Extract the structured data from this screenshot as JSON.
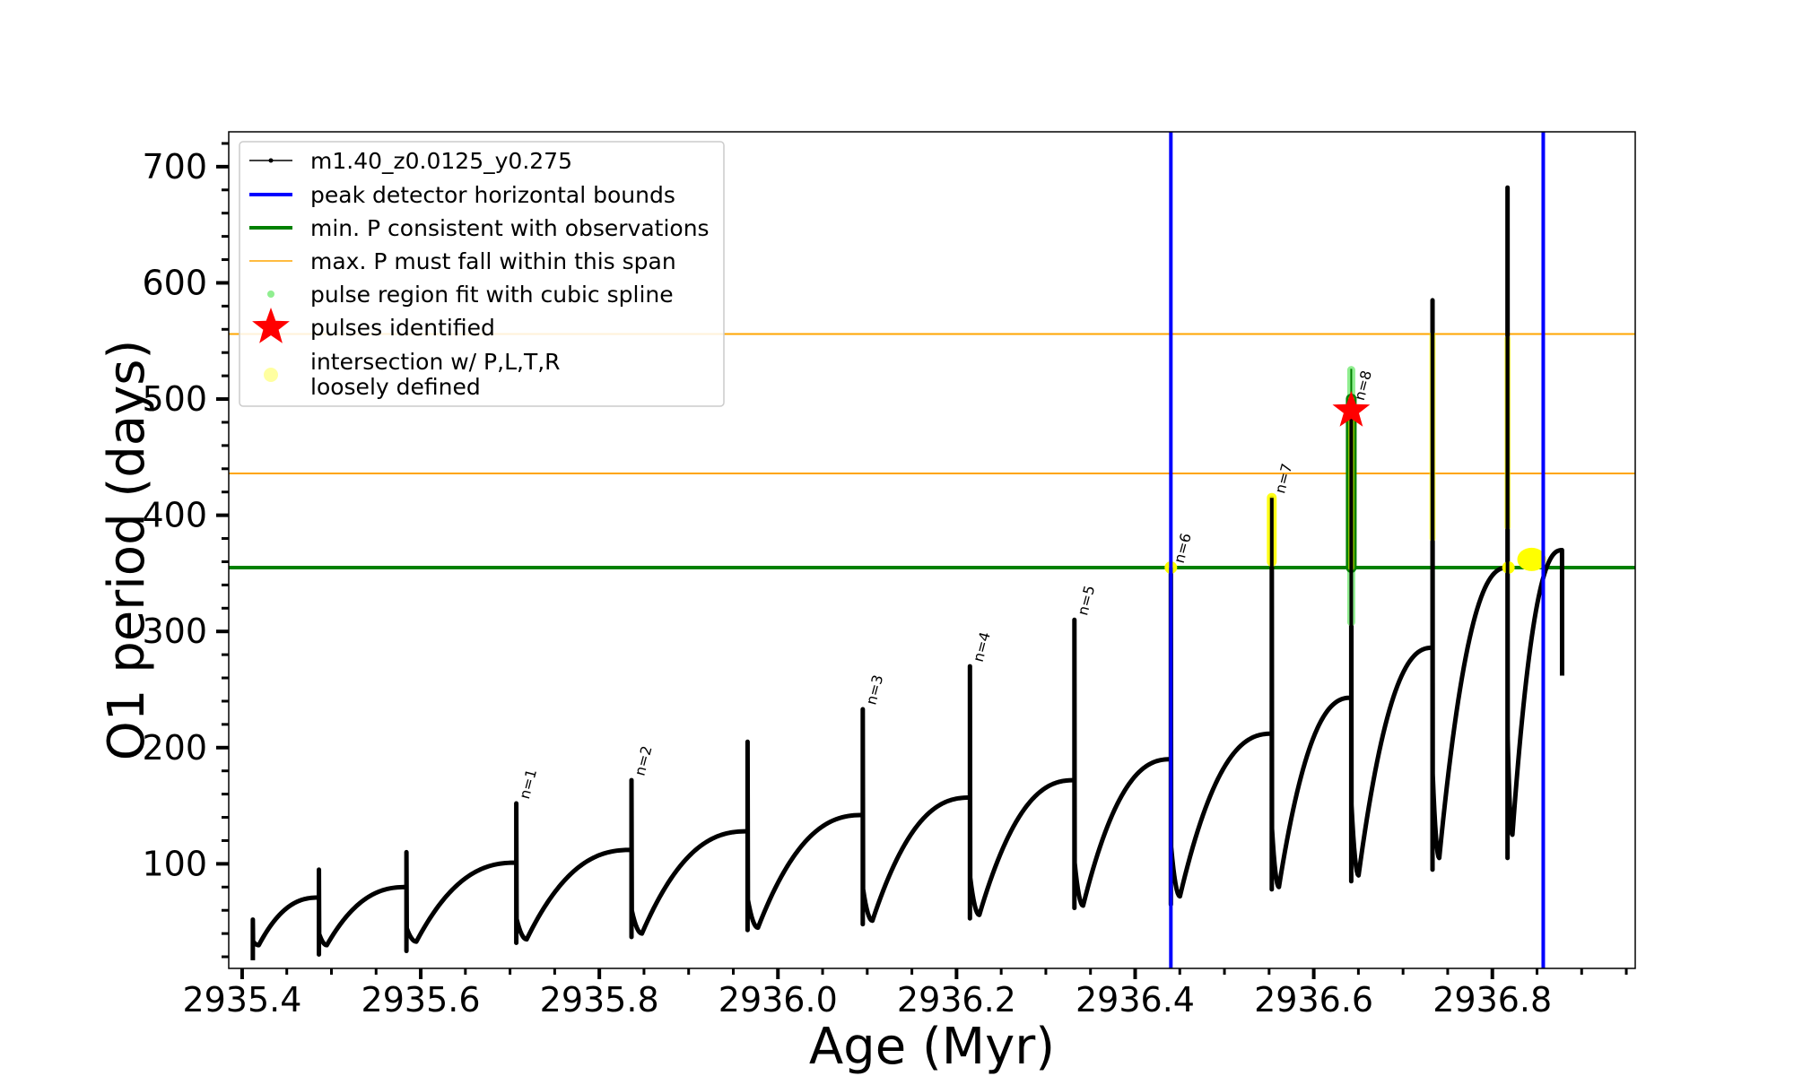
{
  "chart_data": {
    "type": "line",
    "xlabel": "Age (Myr)",
    "ylabel": "O1 period (days)",
    "xlim": [
      2935.385,
      2936.96
    ],
    "ylim": [
      10,
      730
    ],
    "x_ticks": [
      2935.4,
      2935.6,
      2935.8,
      2936.0,
      2936.2,
      2936.4,
      2936.6,
      2936.8
    ],
    "x_tick_labels": [
      "2935.4",
      "2935.6",
      "2935.8",
      "2936.0",
      "2936.2",
      "2936.4",
      "2936.6",
      "2936.8"
    ],
    "x_minor_step": 0.05,
    "y_ticks": [
      100,
      200,
      300,
      400,
      500,
      600,
      700
    ],
    "y_tick_labels": [
      "100",
      "200",
      "300",
      "400",
      "500",
      "600",
      "700"
    ],
    "y_minor_step": 20,
    "grid": false,
    "legend_position": "top-left",
    "legend": [
      {
        "label": "m1.40_z0.0125_y0.275",
        "marker": "line-dot",
        "color": "#000000"
      },
      {
        "label": "peak detector horizontal bounds",
        "marker": "line",
        "color": "#0000ff"
      },
      {
        "label": "min. P consistent with observations",
        "marker": "line",
        "color": "#008000"
      },
      {
        "label": "max. P must fall within this span",
        "marker": "thin-line",
        "color": "#ffa500"
      },
      {
        "label": "pulse region fit with cubic spline",
        "marker": "dot",
        "color": "#90ee90"
      },
      {
        "label": "pulses identified",
        "marker": "star",
        "color": "#ff0000"
      },
      {
        "label": "intersection w/ P,L,T,R\nloosely defined",
        "marker": "circle",
        "color": "#ffffa0"
      }
    ],
    "colors": {
      "series": "#000000",
      "peak_bounds": "#0000ff",
      "min_p": "#008000",
      "max_p_span": "#ffa500",
      "spline_fit": "#90ee90",
      "pulse_star": "#ff0000",
      "intersection": "#ffff00"
    },
    "vertical_lines": [
      2936.44,
      2936.857
    ],
    "min_p_line": 355,
    "max_p_span_lines": [
      436,
      556
    ],
    "cycles": [
      {
        "start": 2935.412,
        "end": 2935.486,
        "min": 30,
        "top": 71,
        "spike": 52,
        "spike_low": 17
      },
      {
        "start": 2935.486,
        "end": 2935.584,
        "min": 30,
        "top": 80,
        "spike": 95,
        "spike_low": 22
      },
      {
        "start": 2935.584,
        "end": 2935.707,
        "min": 33,
        "top": 101,
        "spike": 110,
        "spike_low": 25
      },
      {
        "start": 2935.707,
        "end": 2935.836,
        "min": 35,
        "top": 112,
        "spike": 152,
        "spike_low": 32
      },
      {
        "start": 2935.836,
        "end": 2935.966,
        "min": 40,
        "top": 128,
        "spike": 172,
        "spike_low": 37
      },
      {
        "start": 2935.966,
        "end": 2936.095,
        "min": 45,
        "top": 142,
        "spike": 205,
        "spike_low": 43
      },
      {
        "start": 2936.095,
        "end": 2936.215,
        "min": 51,
        "top": 157,
        "spike": 233,
        "spike_low": 48
      },
      {
        "start": 2936.215,
        "end": 2936.332,
        "min": 56,
        "top": 172,
        "spike": 270,
        "spike_low": 53
      },
      {
        "start": 2936.332,
        "end": 2936.44,
        "min": 64,
        "top": 190,
        "spike": 310,
        "spike_low": 62
      },
      {
        "start": 2936.44,
        "end": 2936.553,
        "min": 72,
        "top": 212,
        "spike": 355,
        "spike_low": 65
      },
      {
        "start": 2936.553,
        "end": 2936.642,
        "min": 80,
        "top": 243,
        "spike": 415,
        "spike_low": 78
      },
      {
        "start": 2936.642,
        "end": 2936.733,
        "min": 90,
        "top": 286,
        "spike": 495,
        "spike_low": 85
      },
      {
        "start": 2936.733,
        "end": 2936.817,
        "min": 105,
        "top": 355,
        "spike": 585,
        "spike_low": 95
      },
      {
        "start": 2936.817,
        "end": 2936.878,
        "min": 125,
        "top": 370,
        "spike": 682,
        "spike_low": 105
      }
    ],
    "series_end": {
      "x": 2936.878,
      "y": 262
    },
    "pulse_labels": [
      {
        "label": "n=1",
        "x": 2935.707,
        "y": 152
      },
      {
        "label": "n=2",
        "x": 2935.836,
        "y": 172
      },
      {
        "label": "n=3",
        "x": 2936.095,
        "y": 233
      },
      {
        "label": "n=4",
        "x": 2936.215,
        "y": 270
      },
      {
        "label": "n=5",
        "x": 2936.332,
        "y": 310
      },
      {
        "label": "n=6",
        "x": 2936.44,
        "y": 355
      },
      {
        "label": "n=7",
        "x": 2936.553,
        "y": 415
      },
      {
        "label": "n=8",
        "x": 2936.642,
        "y": 495
      }
    ],
    "pulse_star": {
      "x": 2936.642,
      "y": 490
    },
    "spline_fit_segments": [
      {
        "x": 2936.642,
        "y0": 308,
        "y1": 525
      }
    ],
    "intersections": [
      {
        "x": 2936.44,
        "y0": 355,
        "y1": 355
      },
      {
        "x": 2936.553,
        "y0": 360,
        "y1": 415
      },
      {
        "x": 2936.642,
        "y0": 355,
        "y1": 500
      },
      {
        "x": 2936.733,
        "y0": 380,
        "y1": 555
      },
      {
        "x": 2936.817,
        "y0": 390,
        "y1": 552
      },
      {
        "x": 2936.818,
        "y0": 355,
        "y1": 355
      },
      {
        "x": 2936.844,
        "y0": 360,
        "y1": 370
      }
    ]
  }
}
